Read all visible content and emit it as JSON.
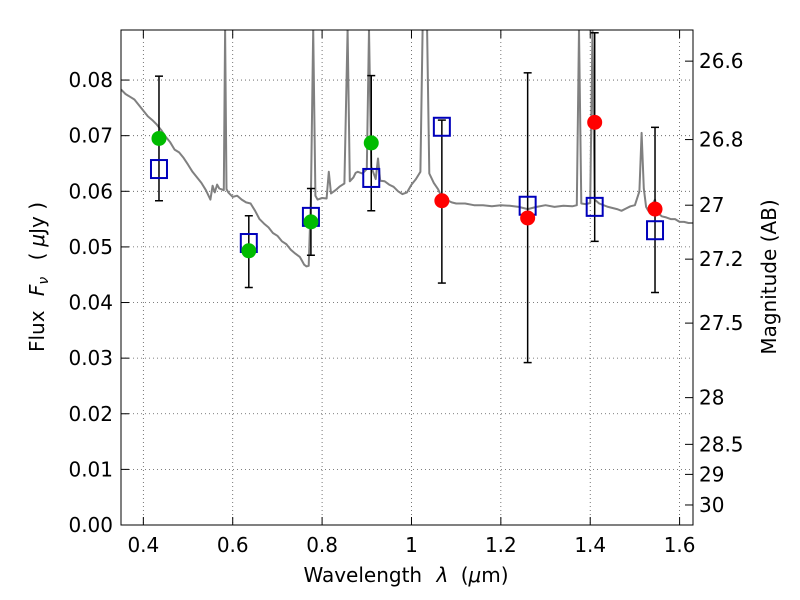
{
  "chart_data": {
    "type": "scatter",
    "xlabel_text": "Wavelength",
    "xlabel_symbol": "λ",
    "xlabel_unit_open": "(",
    "xlabel_unit_mu": "μ",
    "xlabel_unit_rest": "m)",
    "ylabel_text": "Flux",
    "ylabel_symbol": "F",
    "ylabel_subscript": "ν",
    "ylabel_unit_open": "(",
    "ylabel_unit_mu": "μ",
    "ylabel_unit_rest": "Jy )",
    "y2label": "Magnitude (AB)",
    "xlim": [
      0.35,
      1.63
    ],
    "ylim": [
      0.0,
      0.089
    ],
    "grid": true,
    "x_ticks": [
      {
        "value": 0.4,
        "label": "0.4"
      },
      {
        "value": 0.6,
        "label": "0.6"
      },
      {
        "value": 0.8,
        "label": "0.8"
      },
      {
        "value": 1.0,
        "label": "1"
      },
      {
        "value": 1.2,
        "label": "1.2"
      },
      {
        "value": 1.4,
        "label": "1.4"
      },
      {
        "value": 1.6,
        "label": "1.6"
      }
    ],
    "y_ticks": [
      {
        "value": 0.0,
        "label": "0.00"
      },
      {
        "value": 0.01,
        "label": "0.01"
      },
      {
        "value": 0.02,
        "label": "0.02"
      },
      {
        "value": 0.03,
        "label": "0.03"
      },
      {
        "value": 0.04,
        "label": "0.04"
      },
      {
        "value": 0.05,
        "label": "0.05"
      },
      {
        "value": 0.06,
        "label": "0.06"
      },
      {
        "value": 0.07,
        "label": "0.07"
      },
      {
        "value": 0.08,
        "label": "0.08"
      }
    ],
    "y2_ticks": [
      {
        "flux": 0.0834,
        "label": "26.6"
      },
      {
        "flux": 0.0693,
        "label": "26.8"
      },
      {
        "flux": 0.0575,
        "label": "27"
      },
      {
        "flux": 0.0478,
        "label": "27.2"
      },
      {
        "flux": 0.0363,
        "label": "27.5"
      },
      {
        "flux": 0.0229,
        "label": "28"
      },
      {
        "flux": 0.0145,
        "label": "28.5"
      },
      {
        "flux": 0.0091,
        "label": "29"
      },
      {
        "flux": 0.0036,
        "label": "30"
      }
    ],
    "observed_points": [
      {
        "x": 0.435,
        "y": 0.0695,
        "yerr_low": 0.0583,
        "yerr_high": 0.0807,
        "color": "#00bb00"
      },
      {
        "x": 0.636,
        "y": 0.0493,
        "yerr_low": 0.0427,
        "yerr_high": 0.0556,
        "color": "#00bb00"
      },
      {
        "x": 0.775,
        "y": 0.0545,
        "yerr_low": 0.0485,
        "yerr_high": 0.0605,
        "color": "#00bb00"
      },
      {
        "x": 0.91,
        "y": 0.0687,
        "yerr_low": 0.0565,
        "yerr_high": 0.0808,
        "color": "#00bb00"
      },
      {
        "x": 1.068,
        "y": 0.0583,
        "yerr_low": 0.0435,
        "yerr_high": 0.0728,
        "color": "#ff0000"
      },
      {
        "x": 1.26,
        "y": 0.0552,
        "yerr_low": 0.0292,
        "yerr_high": 0.0813,
        "color": "#ff0000"
      },
      {
        "x": 1.41,
        "y": 0.0724,
        "yerr_low": 0.051,
        "yerr_high": 0.0885,
        "color": "#ff0000"
      },
      {
        "x": 1.545,
        "y": 0.0568,
        "yerr_low": 0.0418,
        "yerr_high": 0.0715,
        "color": "#ff0000"
      }
    ],
    "model_points": [
      {
        "x": 0.435,
        "y": 0.064
      },
      {
        "x": 0.636,
        "y": 0.0507
      },
      {
        "x": 0.775,
        "y": 0.0554
      },
      {
        "x": 0.91,
        "y": 0.0624
      },
      {
        "x": 1.068,
        "y": 0.0716
      },
      {
        "x": 1.26,
        "y": 0.0574
      },
      {
        "x": 1.41,
        "y": 0.0572
      },
      {
        "x": 1.545,
        "y": 0.053
      }
    ],
    "spectrum": [
      [
        0.35,
        0.0783
      ],
      [
        0.36,
        0.0775
      ],
      [
        0.37,
        0.077
      ],
      [
        0.38,
        0.0765
      ],
      [
        0.39,
        0.0755
      ],
      [
        0.4,
        0.0745
      ],
      [
        0.41,
        0.0735
      ],
      [
        0.42,
        0.0728
      ],
      [
        0.43,
        0.072
      ],
      [
        0.44,
        0.071
      ],
      [
        0.45,
        0.0698
      ],
      [
        0.46,
        0.0688
      ],
      [
        0.47,
        0.0675
      ],
      [
        0.48,
        0.067
      ],
      [
        0.49,
        0.066
      ],
      [
        0.5,
        0.0648
      ],
      [
        0.51,
        0.0635
      ],
      [
        0.52,
        0.0625
      ],
      [
        0.53,
        0.0615
      ],
      [
        0.54,
        0.0602
      ],
      [
        0.55,
        0.0585
      ],
      [
        0.555,
        0.061
      ],
      [
        0.56,
        0.0598
      ],
      [
        0.565,
        0.0612
      ],
      [
        0.57,
        0.0605
      ],
      [
        0.58,
        0.0602
      ],
      [
        0.583,
        0.0891
      ],
      [
        0.586,
        0.0604
      ],
      [
        0.59,
        0.0598
      ],
      [
        0.6,
        0.059
      ],
      [
        0.61,
        0.0592
      ],
      [
        0.62,
        0.0585
      ],
      [
        0.63,
        0.058
      ],
      [
        0.64,
        0.0578
      ],
      [
        0.65,
        0.0565
      ],
      [
        0.66,
        0.055
      ],
      [
        0.67,
        0.0542
      ],
      [
        0.68,
        0.0535
      ],
      [
        0.69,
        0.0525
      ],
      [
        0.7,
        0.052
      ],
      [
        0.71,
        0.051
      ],
      [
        0.72,
        0.0505
      ],
      [
        0.73,
        0.0495
      ],
      [
        0.74,
        0.0488
      ],
      [
        0.75,
        0.0482
      ],
      [
        0.755,
        0.0475
      ],
      [
        0.76,
        0.0468
      ],
      [
        0.765,
        0.0465
      ],
      [
        0.77,
        0.0466
      ],
      [
        0.775,
        0.0588
      ],
      [
        0.78,
        0.0891
      ],
      [
        0.785,
        0.0592
      ],
      [
        0.79,
        0.0585
      ],
      [
        0.8,
        0.0588
      ],
      [
        0.81,
        0.0587
      ],
      [
        0.815,
        0.0635
      ],
      [
        0.82,
        0.0596
      ],
      [
        0.83,
        0.0602
      ],
      [
        0.84,
        0.0609
      ],
      [
        0.85,
        0.0614
      ],
      [
        0.857,
        0.0891
      ],
      [
        0.862,
        0.0618
      ],
      [
        0.87,
        0.0625
      ],
      [
        0.875,
        0.0633
      ],
      [
        0.88,
        0.0635
      ],
      [
        0.89,
        0.0632
      ],
      [
        0.9,
        0.064
      ],
      [
        0.905,
        0.0891
      ],
      [
        0.91,
        0.0644
      ],
      [
        0.92,
        0.0622
      ],
      [
        0.925,
        0.0659
      ],
      [
        0.93,
        0.0619
      ],
      [
        0.94,
        0.0618
      ],
      [
        0.95,
        0.0612
      ],
      [
        0.96,
        0.0608
      ],
      [
        0.97,
        0.06
      ],
      [
        0.98,
        0.0595
      ],
      [
        0.99,
        0.0598
      ],
      [
        1.0,
        0.0612
      ],
      [
        1.01,
        0.0622
      ],
      [
        1.02,
        0.0635
      ],
      [
        1.025,
        0.0891
      ],
      [
        1.035,
        0.0891
      ],
      [
        1.04,
        0.0632
      ],
      [
        1.05,
        0.0615
      ],
      [
        1.06,
        0.0603
      ],
      [
        1.07,
        0.0585
      ],
      [
        1.08,
        0.0584
      ],
      [
        1.09,
        0.058
      ],
      [
        1.1,
        0.0578
      ],
      [
        1.12,
        0.0578
      ],
      [
        1.14,
        0.0575
      ],
      [
        1.16,
        0.0575
      ],
      [
        1.18,
        0.0573
      ],
      [
        1.2,
        0.0575
      ],
      [
        1.22,
        0.0574
      ],
      [
        1.24,
        0.0572
      ],
      [
        1.26,
        0.0568
      ],
      [
        1.28,
        0.0572
      ],
      [
        1.3,
        0.0575
      ],
      [
        1.32,
        0.0572
      ],
      [
        1.34,
        0.0574
      ],
      [
        1.36,
        0.0573
      ],
      [
        1.37,
        0.0575
      ],
      [
        1.375,
        0.0891
      ],
      [
        1.38,
        0.0578
      ],
      [
        1.39,
        0.0577
      ],
      [
        1.4,
        0.0579
      ],
      [
        1.405,
        0.0891
      ],
      [
        1.41,
        0.0585
      ],
      [
        1.42,
        0.0578
      ],
      [
        1.44,
        0.0572
      ],
      [
        1.46,
        0.0568
      ],
      [
        1.47,
        0.0565
      ],
      [
        1.48,
        0.0569
      ],
      [
        1.49,
        0.0573
      ],
      [
        1.5,
        0.0575
      ],
      [
        1.51,
        0.06
      ],
      [
        1.515,
        0.0705
      ],
      [
        1.52,
        0.0605
      ],
      [
        1.525,
        0.0572
      ],
      [
        1.53,
        0.0565
      ],
      [
        1.545,
        0.0585
      ],
      [
        1.55,
        0.0562
      ],
      [
        1.56,
        0.0555
      ],
      [
        1.57,
        0.0553
      ],
      [
        1.58,
        0.055
      ],
      [
        1.59,
        0.055
      ],
      [
        1.6,
        0.0545
      ],
      [
        1.61,
        0.0545
      ],
      [
        1.62,
        0.0543
      ],
      [
        1.63,
        0.0543
      ]
    ],
    "colors": {
      "spectrum": "#808080",
      "model_marker": "#0000bb",
      "error_bar": "#000000",
      "grid": "#555555"
    }
  }
}
